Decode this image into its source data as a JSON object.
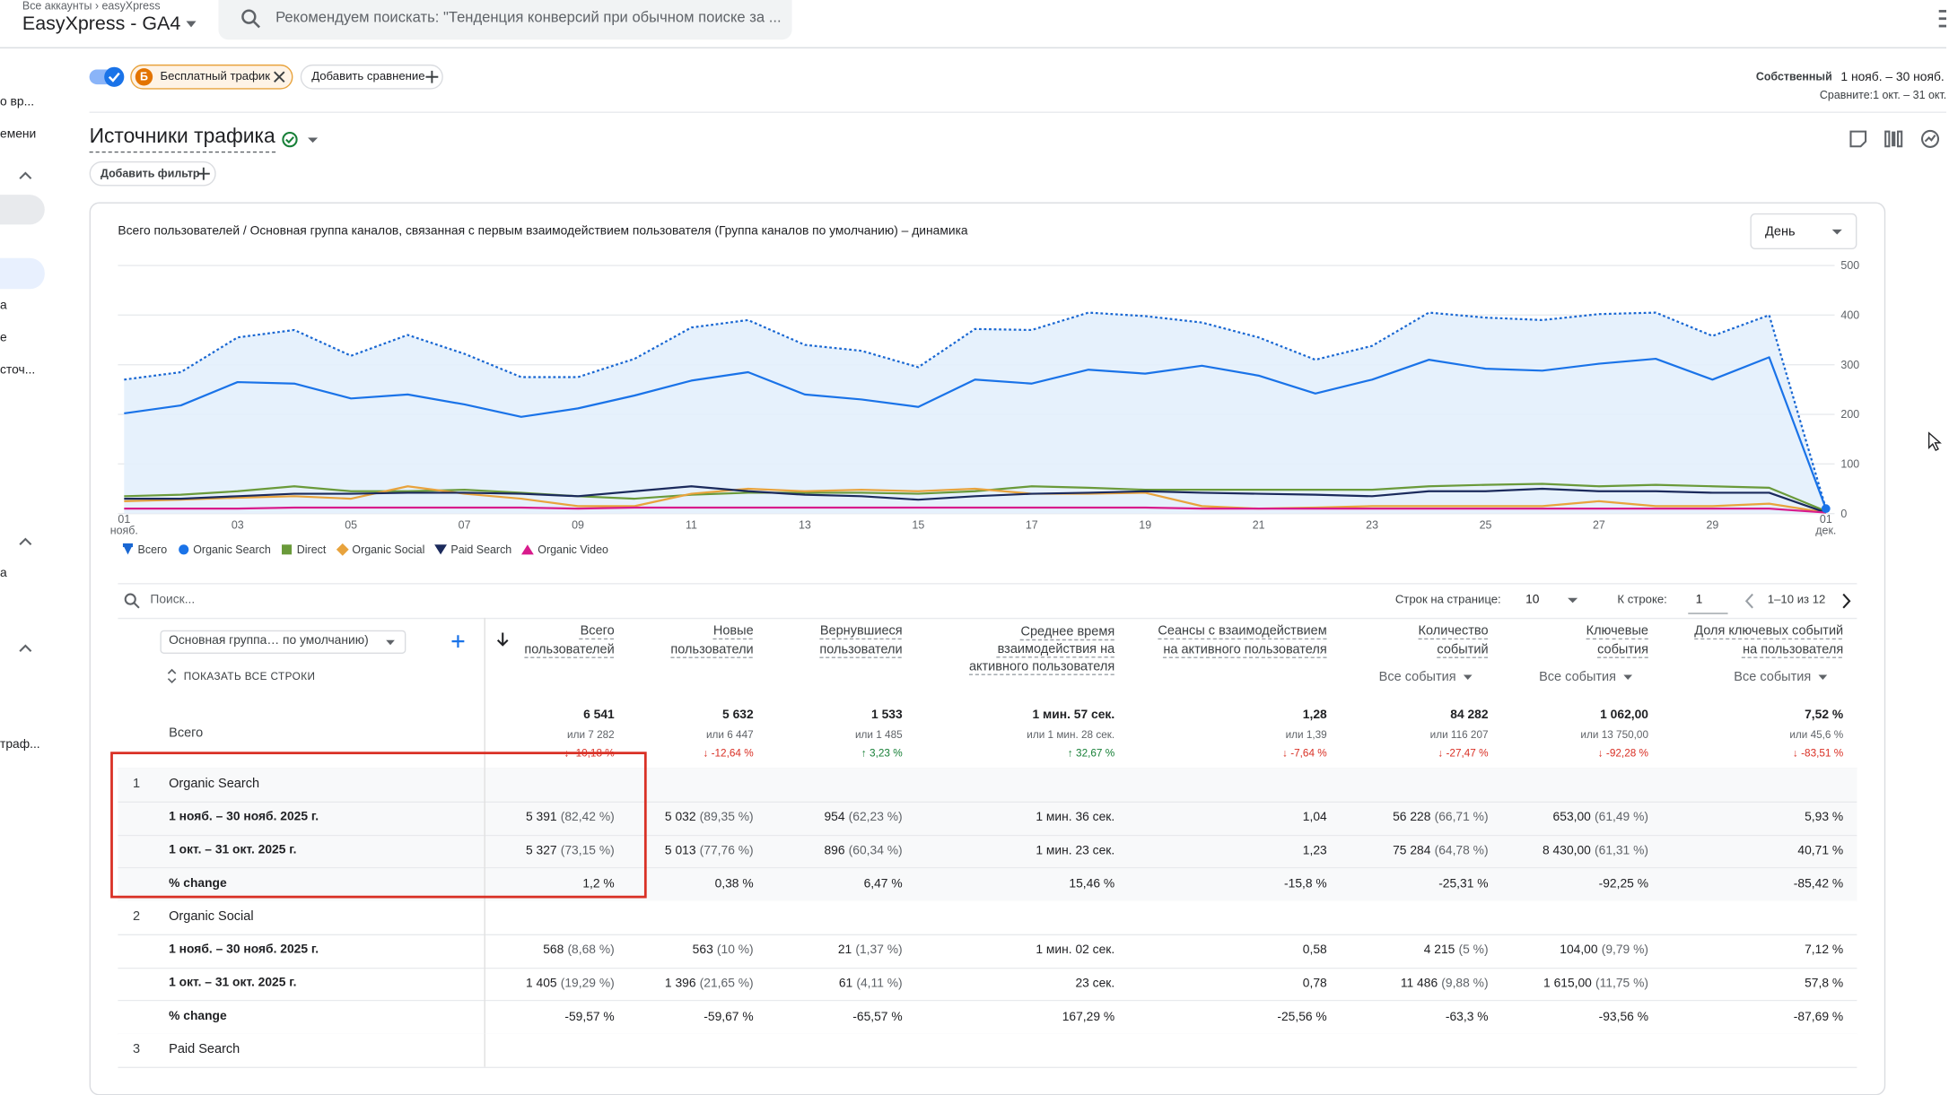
{
  "header": {
    "breadcrumb": "Все аккаунты › easyXpress",
    "property": "EasyXpress - GA4",
    "search_placeholder": "Рекомендуем поискать: \"Тенденция конверсий при обычном поиске за ..."
  },
  "sidebar": {
    "items": [
      "о вр...",
      "емени",
      "а",
      "е",
      "сточ...",
      "а",
      "траф..."
    ]
  },
  "comparison_bar": {
    "segment_badge": "Б",
    "segment": "Бесплатный трафик",
    "add_comparison": "Добавить сравнение",
    "date_label": "Собственный",
    "date_range": "1 нояб. – 30 нояб.",
    "compare": "Сравните:1 окт. – 31 окт."
  },
  "report": {
    "title": "Источники трафика",
    "add_filter": "Добавить фильтр"
  },
  "chart": {
    "type": "line",
    "title": "Всего пользователей / Основная группа каналов, связанная с первым взаимодействием пользователя (Группа каналов по умолчанию) – динамика",
    "granularity": "День",
    "categories": [
      "01\nнояб.",
      null,
      "03",
      null,
      "05",
      null,
      "07",
      null,
      "09",
      null,
      "11",
      null,
      "13",
      null,
      "15",
      null,
      "17",
      null,
      "19",
      null,
      "21",
      null,
      "23",
      null,
      "25",
      null,
      "27",
      null,
      "29",
      null,
      "01\nдек."
    ],
    "ylim": [
      0,
      500
    ],
    "yticks": [
      0,
      100,
      200,
      300,
      400,
      500
    ],
    "grid": true,
    "series": [
      {
        "name": "Всего",
        "color": "#1967d2",
        "dash": "dotted",
        "area": true,
        "marker": "pin",
        "values": [
          270,
          285,
          355,
          370,
          318,
          360,
          322,
          275,
          275,
          312,
          375,
          390,
          340,
          328,
          295,
          372,
          370,
          405,
          398,
          385,
          355,
          310,
          338,
          405,
          395,
          390,
          402,
          405,
          358,
          400,
          10
        ]
      },
      {
        "name": "Organic Search",
        "color": "#1a73e8",
        "marker": "circle",
        "values": [
          202,
          218,
          265,
          262,
          232,
          240,
          220,
          195,
          212,
          238,
          268,
          285,
          240,
          230,
          215,
          270,
          262,
          290,
          282,
          298,
          278,
          242,
          270,
          310,
          292,
          288,
          302,
          312,
          270,
          315,
          10
        ]
      },
      {
        "name": "Direct",
        "color": "#6a9a3a",
        "marker": "square",
        "values": [
          35,
          38,
          45,
          55,
          45,
          45,
          48,
          42,
          35,
          30,
          38,
          42,
          42,
          42,
          40,
          45,
          55,
          52,
          48,
          48,
          48,
          48,
          48,
          55,
          58,
          60,
          55,
          58,
          55,
          52,
          5
        ]
      },
      {
        "name": "Organic Social",
        "color": "#e8a33d",
        "marker": "diamond",
        "values": [
          25,
          28,
          32,
          35,
          30,
          55,
          40,
          30,
          15,
          15,
          40,
          50,
          45,
          48,
          45,
          50,
          40,
          40,
          42,
          15,
          10,
          12,
          15,
          15,
          15,
          15,
          25,
          15,
          15,
          20,
          2
        ]
      },
      {
        "name": "Paid Search",
        "color": "#1b2a5c",
        "marker": "triangle-down",
        "values": [
          30,
          30,
          35,
          40,
          40,
          42,
          42,
          40,
          35,
          45,
          55,
          45,
          38,
          35,
          28,
          35,
          40,
          42,
          45,
          42,
          40,
          38,
          35,
          45,
          45,
          50,
          45,
          45,
          42,
          42,
          2
        ]
      },
      {
        "name": "Organic Video",
        "color": "#d81b8c",
        "marker": "triangle-up",
        "values": [
          10,
          10,
          10,
          12,
          12,
          12,
          12,
          12,
          10,
          12,
          12,
          12,
          12,
          12,
          12,
          12,
          12,
          12,
          12,
          10,
          10,
          10,
          10,
          10,
          10,
          10,
          10,
          10,
          10,
          10,
          2
        ]
      }
    ]
  },
  "table": {
    "search_placeholder": "Поиск...",
    "rows_per_page_label": "Строк на странице:",
    "rows_per_page": "10",
    "go_to_label": "К строке:",
    "go_to": "1",
    "pagination": "1–10 из 12",
    "dimension": "Основная группа… по умолчанию)",
    "show_all": "ПОКАЗАТЬ ВСЕ СТРОКИ",
    "columns": [
      {
        "label": "Всего\nпользователей"
      },
      {
        "label": "Новые\nпользователи"
      },
      {
        "label": "Вернувшиеся\nпользователи"
      },
      {
        "label": "Среднее время\nвзаимодействия на\nактивного пользователя"
      },
      {
        "label": "Сеансы с взаимодействием\nна активного пользователя"
      },
      {
        "label": "Количество\nсобытий",
        "filter": "Все события"
      },
      {
        "label": "Ключевые\nсобытия",
        "filter": "Все события"
      },
      {
        "label": "Доля ключевых событий\nна пользователя",
        "filter": "Все события"
      }
    ],
    "total": {
      "label": "Всего",
      "cells": [
        [
          "6 541",
          "или 7 282",
          "↓ -10,18 %"
        ],
        [
          "5 632",
          "или 6 447",
          "↓ -12,64 %"
        ],
        [
          "1 533",
          "или 1 485",
          "↑ 3,23 %"
        ],
        [
          "1 мин. 57 сек.",
          "или 1 мин. 28 сек.",
          "↑ 32,67 %"
        ],
        [
          "1,28",
          "или 1,39",
          "↓ -7,64 %"
        ],
        [
          "84 282",
          "или 116 207",
          "↓ -27,47 %"
        ],
        [
          "1 062,00",
          "или 13 750,00",
          "↓ -92,28 %"
        ],
        [
          "7,52 %",
          "или 45,6 %",
          "↓ -83,51 %"
        ]
      ]
    },
    "groups": [
      {
        "index": "1",
        "name": "Organic Search",
        "rows": [
          {
            "label": "1 нояб. – 30 нояб. 2025 г.",
            "cells": [
              [
                "5 391",
                "(82,42 %)"
              ],
              [
                "5 032",
                "(89,35 %)"
              ],
              [
                "954",
                "(62,23 %)"
              ],
              [
                "1 мин. 36 сек."
              ],
              [
                "1,04"
              ],
              [
                "56 228",
                "(66,71 %)"
              ],
              [
                "653,00",
                "(61,49 %)"
              ],
              [
                "5,93 %"
              ]
            ]
          },
          {
            "label": "1 окт. – 31 окт. 2025 г.",
            "cells": [
              [
                "5 327",
                "(73,15 %)"
              ],
              [
                "5 013",
                "(77,76 %)"
              ],
              [
                "896",
                "(60,34 %)"
              ],
              [
                "1 мин. 23 сек."
              ],
              [
                "1,23"
              ],
              [
                "75 284",
                "(64,78 %)"
              ],
              [
                "8 430,00",
                "(61,31 %)"
              ],
              [
                "40,71 %"
              ]
            ]
          },
          {
            "label": "% change",
            "cells": [
              [
                "1,2 %"
              ],
              [
                "0,38 %"
              ],
              [
                "6,47 %"
              ],
              [
                "15,46 %"
              ],
              [
                "-15,8 %"
              ],
              [
                "-25,31 %"
              ],
              [
                "-92,25 %"
              ],
              [
                "-85,42 %"
              ]
            ]
          }
        ]
      },
      {
        "index": "2",
        "name": "Organic Social",
        "rows": [
          {
            "label": "1 нояб. – 30 нояб. 2025 г.",
            "cells": [
              [
                "568",
                "(8,68 %)"
              ],
              [
                "563",
                "(10 %)"
              ],
              [
                "21",
                "(1,37 %)"
              ],
              [
                "1 мин. 02 сек."
              ],
              [
                "0,58"
              ],
              [
                "4 215",
                "(5 %)"
              ],
              [
                "104,00",
                "(9,79 %)"
              ],
              [
                "7,12 %"
              ]
            ]
          },
          {
            "label": "1 окт. – 31 окт. 2025 г.",
            "cells": [
              [
                "1 405",
                "(19,29 %)"
              ],
              [
                "1 396",
                "(21,65 %)"
              ],
              [
                "61",
                "(4,11 %)"
              ],
              [
                "23 сек."
              ],
              [
                "0,78"
              ],
              [
                "11 486",
                "(9,88 %)"
              ],
              [
                "1 615,00",
                "(11,75 %)"
              ],
              [
                "57,8 %"
              ]
            ]
          },
          {
            "label": "% change",
            "cells": [
              [
                "-59,57 %"
              ],
              [
                "-59,67 %"
              ],
              [
                "-65,57 %"
              ],
              [
                "167,29 %"
              ],
              [
                "-25,56 %"
              ],
              [
                "-63,3 %"
              ],
              [
                "-93,56 %"
              ],
              [
                "-87,69 %"
              ]
            ]
          }
        ]
      },
      {
        "index": "3",
        "name": "Paid Search",
        "rows": []
      }
    ]
  }
}
